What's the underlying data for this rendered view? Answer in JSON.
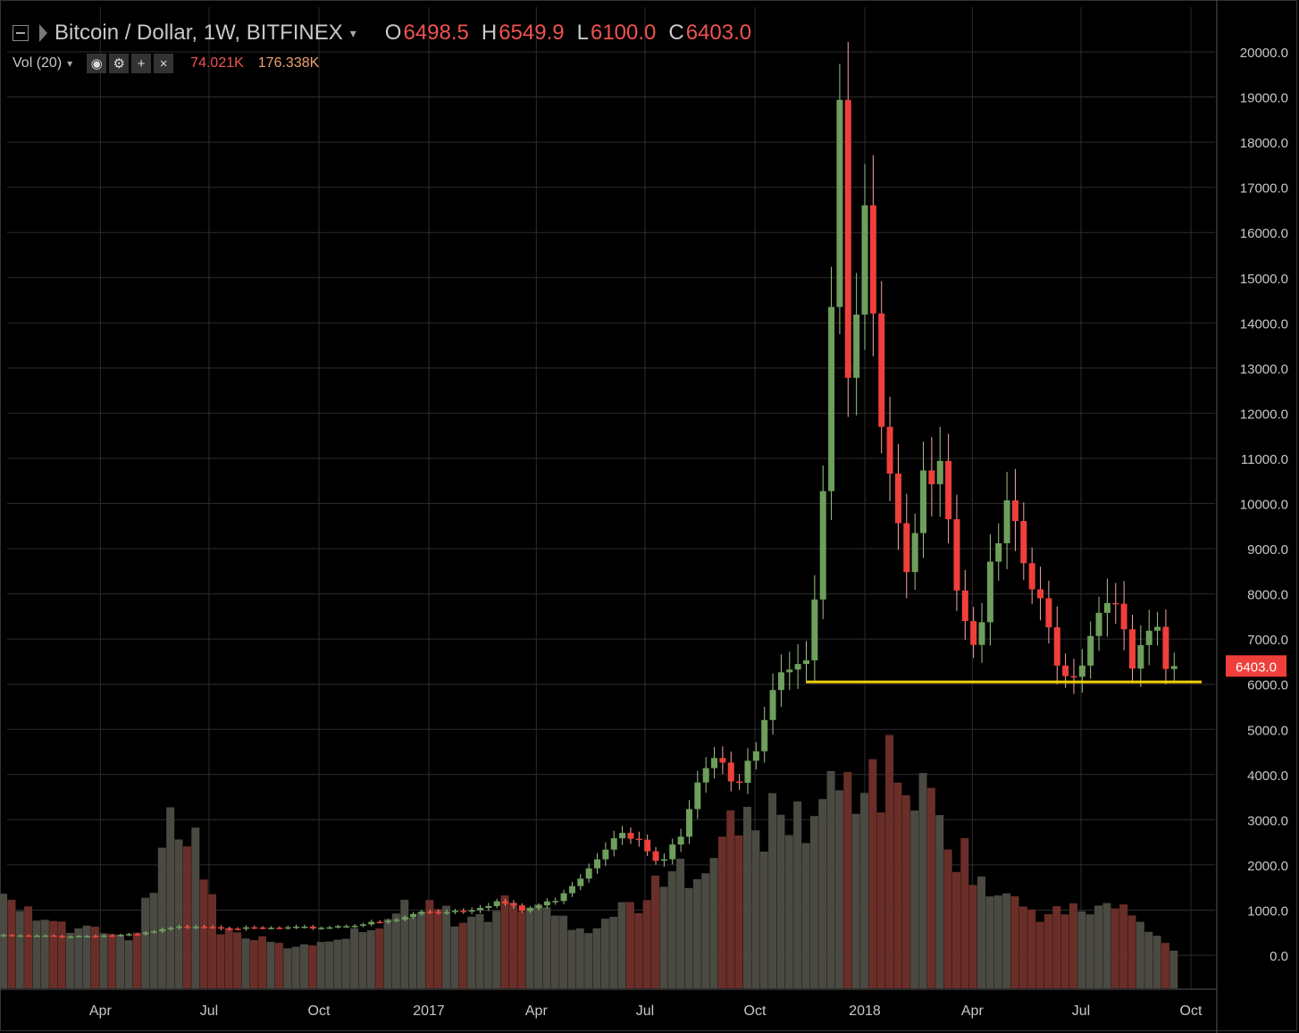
{
  "header": {
    "symbol_title": "Bitcoin / Dollar, 1W, BITFINEX",
    "open_label": "O",
    "open_value": "6498.5",
    "high_label": "H",
    "high_value": "6549.9",
    "low_label": "L",
    "low_value": "6100.0",
    "close_label": "C",
    "close_value": "6403.0",
    "caret_glyph": "▾",
    "icons": [
      "collapse-icon",
      "flag-icon",
      "chevron-down-icon"
    ]
  },
  "volume_legend": {
    "title": "Vol (20)",
    "caret_glyph": "▾",
    "buttons": [
      {
        "name": "eye-icon",
        "glyph": "◉"
      },
      {
        "name": "gear-icon",
        "glyph": "⚙"
      },
      {
        "name": "plus-icon",
        "glyph": "+"
      },
      {
        "name": "close-icon",
        "glyph": "×"
      }
    ],
    "value1": "74.021K",
    "value2": "176.338K"
  },
  "colors": {
    "up": "#6e9e5c",
    "down": "#ef3f3a",
    "vol_up": "#4a4a42",
    "vol_down": "#6a2e28",
    "grid": "#2c2c2c",
    "support": "#f5d000",
    "price_tag": "#ef3f3a",
    "axis_text": "#c8c8c8"
  },
  "chart_data": {
    "type": "candlestick",
    "interval": "1W",
    "y_axis_labels": [
      "20000.0",
      "19000.0",
      "18000.0",
      "17000.0",
      "16000.0",
      "15000.0",
      "14000.0",
      "13000.0",
      "12000.0",
      "11000.0",
      "10000.0",
      "9000.0",
      "8000.0",
      "7000.0",
      "6000.0",
      "5000.0",
      "4000.0",
      "3000.0",
      "2000.0",
      "1000.0",
      "0.0"
    ],
    "ylim": [
      -800,
      20500
    ],
    "x_axis_labels": [
      {
        "label": "Apr",
        "date": "2016-04-01"
      },
      {
        "label": "Jul",
        "date": "2016-07-01"
      },
      {
        "label": "Oct",
        "date": "2016-10-01"
      },
      {
        "label": "2017",
        "date": "2017-01-01"
      },
      {
        "label": "Apr",
        "date": "2017-04-01"
      },
      {
        "label": "Jul",
        "date": "2017-07-01"
      },
      {
        "label": "Oct",
        "date": "2017-10-01"
      },
      {
        "label": "2018",
        "date": "2018-01-01"
      },
      {
        "label": "Apr",
        "date": "2018-04-01"
      },
      {
        "label": "Jul",
        "date": "2018-07-01"
      },
      {
        "label": "Oct",
        "date": "2018-10-01"
      }
    ],
    "last_price_tag": "6403.0",
    "last_price": 6403.0,
    "support_level": {
      "price": 6050,
      "from_date": "2017-11-13",
      "to_date": "2018-10-01"
    },
    "candle_anchors": [
      {
        "date": "2016-01-04",
        "close": 430
      },
      {
        "date": "2016-03-01",
        "close": 420
      },
      {
        "date": "2016-05-01",
        "close": 450
      },
      {
        "date": "2016-06-01",
        "close": 600
      },
      {
        "date": "2016-06-20",
        "close": 660
      },
      {
        "date": "2016-08-01",
        "close": 590
      },
      {
        "date": "2016-10-01",
        "close": 610
      },
      {
        "date": "2016-12-01",
        "close": 750
      },
      {
        "date": "2016-12-26",
        "close": 960
      },
      {
        "date": "2017-02-01",
        "close": 1000
      },
      {
        "date": "2017-03-01",
        "close": 1200
      },
      {
        "date": "2017-03-20",
        "close": 980
      },
      {
        "date": "2017-04-15",
        "close": 1200
      },
      {
        "date": "2017-05-10",
        "close": 1800
      },
      {
        "date": "2017-06-05",
        "close": 2700
      },
      {
        "date": "2017-06-25",
        "close": 2500
      },
      {
        "date": "2017-07-15",
        "close": 1950
      },
      {
        "date": "2017-08-01",
        "close": 2800
      },
      {
        "date": "2017-08-15",
        "close": 4100
      },
      {
        "date": "2017-09-01",
        "close": 4600
      },
      {
        "date": "2017-09-15",
        "close": 3700
      },
      {
        "date": "2017-10-01",
        "close": 4400
      },
      {
        "date": "2017-10-20",
        "close": 6000
      },
      {
        "date": "2017-11-10",
        "close": 6200
      },
      {
        "date": "2017-11-25",
        "close": 9300
      },
      {
        "date": "2017-12-04",
        "close": 14900
      },
      {
        "date": "2017-12-11",
        "close": 19000
      },
      {
        "date": "2017-12-18",
        "close": 13400
      },
      {
        "date": "2018-01-01",
        "close": 16200
      },
      {
        "date": "2018-01-08",
        "close": 13600
      },
      {
        "date": "2018-01-15",
        "close": 11500
      },
      {
        "date": "2018-02-05",
        "close": 8100
      },
      {
        "date": "2018-02-19",
        "close": 10400
      },
      {
        "date": "2018-03-05",
        "close": 11500
      },
      {
        "date": "2018-03-19",
        "close": 8300
      },
      {
        "date": "2018-04-02",
        "close": 6900
      },
      {
        "date": "2018-04-30",
        "close": 9700
      },
      {
        "date": "2018-05-21",
        "close": 8100
      },
      {
        "date": "2018-06-18",
        "close": 6200
      },
      {
        "date": "2018-07-02",
        "close": 6600
      },
      {
        "date": "2018-07-23",
        "close": 8200
      },
      {
        "date": "2018-08-13",
        "close": 6300
      },
      {
        "date": "2018-09-03",
        "close": 7200
      },
      {
        "date": "2018-09-10",
        "close": 6200
      },
      {
        "date": "2018-09-17",
        "close": 6403
      }
    ],
    "volume_anchors": [
      {
        "date": "2016-01-04",
        "value": 1200
      },
      {
        "date": "2016-03-01",
        "value": 600
      },
      {
        "date": "2016-05-01",
        "value": 400
      },
      {
        "date": "2016-06-10",
        "value": 3500
      },
      {
        "date": "2016-07-10",
        "value": 600
      },
      {
        "date": "2016-09-10",
        "value": 150
      },
      {
        "date": "2016-11-01",
        "value": 500
      },
      {
        "date": "2016-12-26",
        "value": 1200
      },
      {
        "date": "2017-02-01",
        "value": 700
      },
      {
        "date": "2017-03-15",
        "value": 1200
      },
      {
        "date": "2017-05-15",
        "value": 600
      },
      {
        "date": "2017-07-15",
        "value": 1500
      },
      {
        "date": "2017-09-15",
        "value": 2800
      },
      {
        "date": "2017-11-15",
        "value": 3000
      },
      {
        "date": "2017-12-15",
        "value": 3800
      },
      {
        "date": "2018-02-05",
        "value": 4000
      },
      {
        "date": "2018-03-15",
        "value": 2600
      },
      {
        "date": "2018-04-15",
        "value": 1400
      },
      {
        "date": "2018-06-01",
        "value": 900
      },
      {
        "date": "2018-08-01",
        "value": 1100
      },
      {
        "date": "2018-09-17",
        "value": 100
      }
    ]
  }
}
